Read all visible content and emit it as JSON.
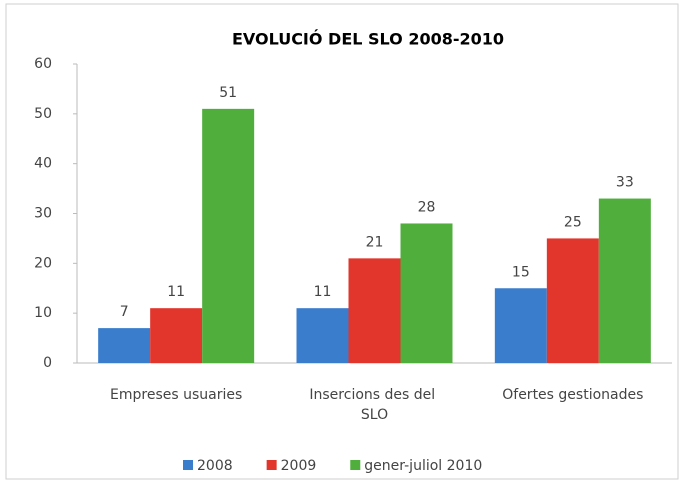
{
  "chart_data": {
    "type": "bar",
    "title": "EVOLUCIÓ DEL SLO 2008-2010",
    "categories": [
      "Empreses usuaries",
      "Insercions des del SLO",
      "Ofertes gestionades"
    ],
    "series": [
      {
        "name": "2008",
        "color": "#3a7dcc",
        "values": [
          7,
          11,
          15
        ]
      },
      {
        "name": "2009",
        "color": "#e2352c",
        "values": [
          11,
          21,
          25
        ]
      },
      {
        "name": "gener-juliol 2010",
        "color": "#4fae3c",
        "values": [
          51,
          28,
          33
        ]
      }
    ],
    "ylim": [
      0,
      60
    ],
    "yticks": [
      0,
      10,
      20,
      30,
      40,
      50,
      60
    ],
    "grid": false,
    "legend": "bottom"
  }
}
